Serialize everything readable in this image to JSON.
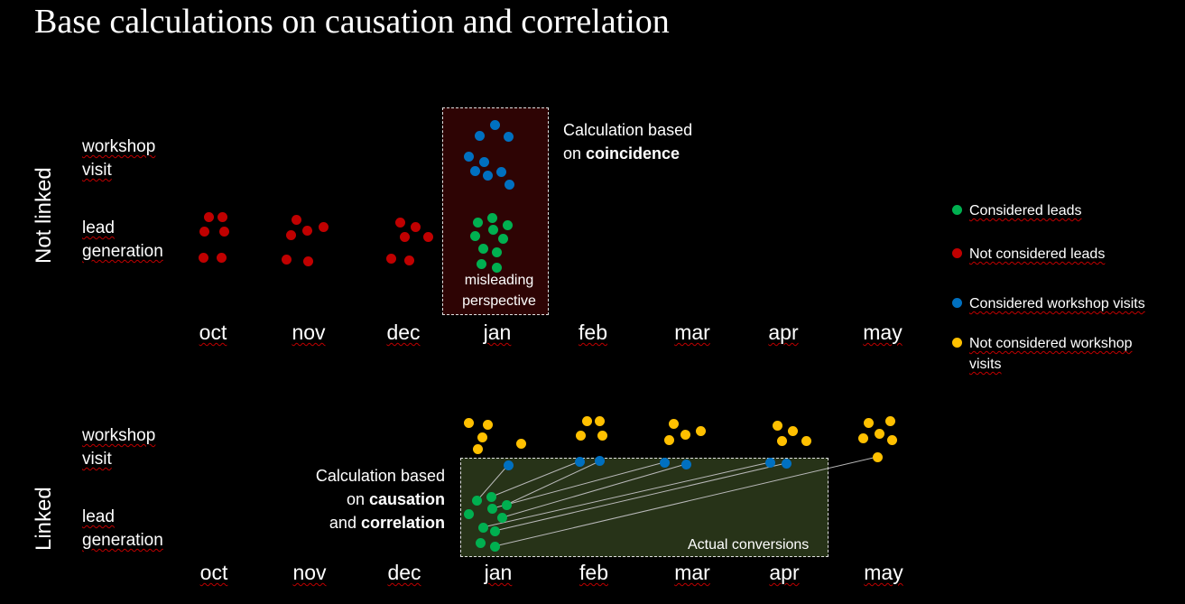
{
  "title": "Base calculations on causation and correlation",
  "sections": {
    "not_linked": "Not linked",
    "linked": "Linked"
  },
  "row_labels": {
    "workshop_line1": "workshop",
    "workshop_line2": "visit",
    "lead_line1": "lead",
    "lead_line2": "generation"
  },
  "months": [
    "oct",
    "nov",
    "dec",
    "jan",
    "feb",
    "mar",
    "apr",
    "may"
  ],
  "top_box": {
    "caption_line1": "misleading",
    "caption_line2": "perspective"
  },
  "top_note": {
    "line1": "Calculation based",
    "line2_prefix": "on ",
    "line2_bold": "coincidence"
  },
  "bottom_note": {
    "line1": "Calculation based",
    "line2_prefix": "on ",
    "line2_bold": "causation",
    "line3_prefix": "and ",
    "line3_bold": "correlation"
  },
  "bottom_box": {
    "caption": "Actual conversions"
  },
  "legend": [
    {
      "label": "Considered leads",
      "color": "#00b050"
    },
    {
      "label": "Not considered leads",
      "color": "#c00000"
    },
    {
      "label": "Considered workshop visits",
      "color": "#0070c0"
    },
    {
      "label": "Not considered workshop visits",
      "color": "#ffc000"
    }
  ],
  "colors": {
    "not_considered_leads": "#c00000",
    "considered_leads": "#00b050",
    "considered_workshop_visits": "#0070c0",
    "not_considered_workshop_visits": "#ffc000",
    "top_box_fill": "#2e0404",
    "bottom_box_fill": "#273318"
  }
}
